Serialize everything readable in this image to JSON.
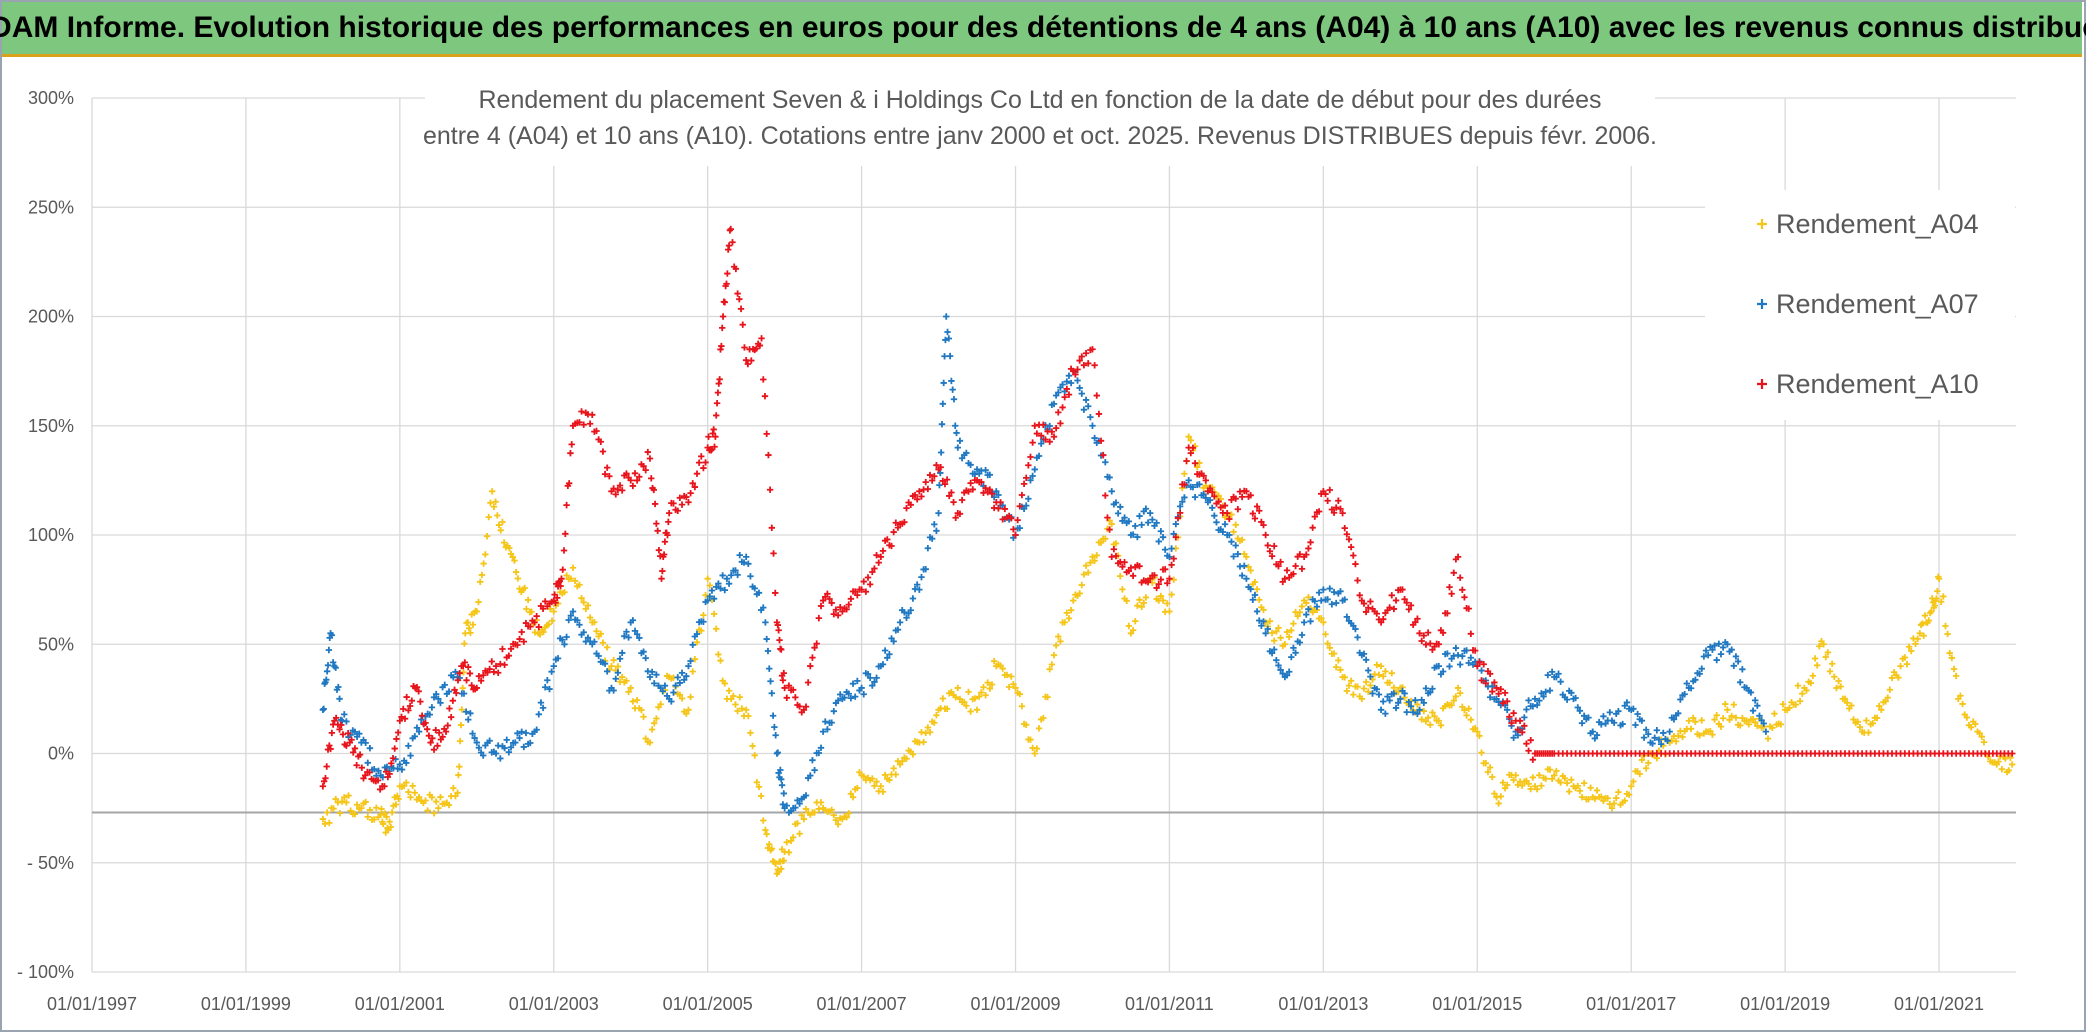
{
  "banner": {
    "title": "ADAM Informe. Evolution historique des performances en euros pour des détentions de 4 ans (A04) à 10 ans (A10) avec les revenus connus distribués"
  },
  "colors": {
    "banner_bg": "#7dc77f",
    "A04": "#f5c518",
    "A07": "#1f78c1",
    "A10": "#e8141c"
  },
  "chart_data": {
    "type": "scatter",
    "title_lines": [
      "Rendement du placement Seven & i Holdings Co Ltd en fonction de la date de début pour des durées",
      "entre 4 (A04) et 10 ans (A10). Cotations entre janv 2000 et oct. 2025. Revenus DISTRIBUES depuis févr. 2006."
    ],
    "xlabel": "",
    "ylabel": "",
    "ylim": [
      -100,
      300
    ],
    "xlim": [
      1997.0,
      2022.0
    ],
    "y_ticks": [
      {
        "value": 300,
        "label": "300%"
      },
      {
        "value": 250,
        "label": "250%"
      },
      {
        "value": 200,
        "label": "200%"
      },
      {
        "value": 150,
        "label": "150%"
      },
      {
        "value": 100,
        "label": "100%"
      },
      {
        "value": 50,
        "label": "50%"
      },
      {
        "value": 0,
        "label": "0%"
      },
      {
        "value": -50,
        "label": "- 50%"
      },
      {
        "value": -100,
        "label": "- 100%"
      }
    ],
    "x_ticks": [
      {
        "value": 1997,
        "label": "01/01/1997"
      },
      {
        "value": 1999,
        "label": "01/01/1999"
      },
      {
        "value": 2001,
        "label": "01/01/2001"
      },
      {
        "value": 2003,
        "label": "01/01/2003"
      },
      {
        "value": 2005,
        "label": "01/01/2005"
      },
      {
        "value": 2007,
        "label": "01/01/2007"
      },
      {
        "value": 2009,
        "label": "01/01/2009"
      },
      {
        "value": 2011,
        "label": "01/01/2011"
      },
      {
        "value": 2013,
        "label": "01/01/2013"
      },
      {
        "value": 2015,
        "label": "01/01/2015"
      },
      {
        "value": 2017,
        "label": "01/01/2017"
      },
      {
        "value": 2019,
        "label": "01/01/2019"
      },
      {
        "value": 2021,
        "label": "01/01/2021"
      }
    ],
    "reference_line_y": -27,
    "legend_position": "top-right",
    "series": [
      {
        "name": "Rendement_A04",
        "color": "#f5c518",
        "x": [
          2000.0,
          2000.25,
          2000.5,
          2000.75,
          2000.85,
          2001.0,
          2001.25,
          2001.5,
          2001.75,
          2001.85,
          2002.0,
          2002.2,
          2002.4,
          2002.6,
          2002.8,
          2003.0,
          2003.25,
          2003.5,
          2003.75,
          2004.0,
          2004.25,
          2004.5,
          2004.75,
          2005.0,
          2005.25,
          2005.5,
          2005.75,
          2005.9,
          2006.0,
          2006.25,
          2006.5,
          2006.75,
          2007.0,
          2007.25,
          2007.5,
          2007.75,
          2008.0,
          2008.25,
          2008.5,
          2008.75,
          2009.0,
          2009.25,
          2009.5,
          2009.75,
          2010.0,
          2010.25,
          2010.5,
          2010.75,
          2011.0,
          2011.25,
          2011.5,
          2011.75,
          2012.0,
          2012.25,
          2012.5,
          2012.75,
          2013.0,
          2013.25,
          2013.5,
          2013.75,
          2014.0,
          2014.25,
          2014.5,
          2014.75,
          2015.0,
          2015.25,
          2015.5,
          2015.75,
          2016.0,
          2016.25,
          2016.5,
          2016.75,
          2017.0,
          2017.25,
          2017.5,
          2017.75,
          2018.0,
          2018.25,
          2018.5,
          2018.75,
          2019.0,
          2019.25,
          2019.5,
          2019.75,
          2020.0,
          2020.25,
          2020.5,
          2020.75,
          2020.9,
          2021.0,
          2021.25,
          2021.5,
          2021.75,
          2021.95
        ],
        "y": [
          -30,
          -22,
          -25,
          -28,
          -35,
          -15,
          -20,
          -25,
          -18,
          55,
          65,
          120,
          95,
          75,
          55,
          65,
          85,
          60,
          40,
          30,
          5,
          35,
          20,
          80,
          25,
          20,
          -35,
          -55,
          -45,
          -30,
          -25,
          -30,
          -10,
          -15,
          -5,
          5,
          20,
          30,
          20,
          40,
          30,
          0,
          45,
          70,
          90,
          105,
          55,
          80,
          65,
          145,
          120,
          110,
          90,
          60,
          50,
          70,
          60,
          35,
          25,
          40,
          30,
          20,
          15,
          30,
          10,
          -20,
          -10,
          -15,
          -10,
          -15,
          -20,
          -25,
          -15,
          0,
          5,
          15,
          10,
          20,
          15,
          10,
          20,
          30,
          50,
          25,
          10,
          20,
          40,
          55,
          65,
          80,
          25,
          10,
          -5,
          -5
        ]
      },
      {
        "name": "Rendement_A07",
        "color": "#1f78c1",
        "x": [
          2000.0,
          2000.1,
          2000.25,
          2000.5,
          2000.75,
          2001.0,
          2001.25,
          2001.5,
          2001.75,
          2002.0,
          2002.25,
          2002.5,
          2002.75,
          2003.0,
          2003.25,
          2003.5,
          2003.75,
          2004.0,
          2004.25,
          2004.5,
          2004.75,
          2005.0,
          2005.25,
          2005.5,
          2005.75,
          2005.9,
          2006.0,
          2006.25,
          2006.5,
          2006.75,
          2007.0,
          2007.25,
          2007.5,
          2007.75,
          2008.0,
          2008.1,
          2008.25,
          2008.5,
          2008.75,
          2009.0,
          2009.25,
          2009.5,
          2009.75,
          2010.0,
          2010.25,
          2010.5,
          2010.75,
          2011.0,
          2011.25,
          2011.5,
          2011.75,
          2012.0,
          2012.25,
          2012.5,
          2012.75,
          2013.0,
          2013.25,
          2013.5,
          2013.75,
          2014.0,
          2014.25,
          2014.5,
          2014.75,
          2015.0,
          2015.25,
          2015.5,
          2015.75,
          2016.0,
          2016.25,
          2016.5,
          2016.75,
          2017.0,
          2017.25,
          2017.5,
          2017.75,
          2018.0,
          2018.25,
          2018.5,
          2018.75
        ],
        "y": [
          20,
          55,
          15,
          5,
          -10,
          -5,
          10,
          25,
          35,
          5,
          0,
          5,
          10,
          40,
          65,
          50,
          30,
          60,
          35,
          25,
          40,
          70,
          80,
          90,
          60,
          0,
          -25,
          -20,
          10,
          25,
          30,
          40,
          60,
          75,
          110,
          200,
          140,
          130,
          120,
          100,
          130,
          160,
          175,
          150,
          120,
          100,
          110,
          90,
          125,
          115,
          100,
          80,
          55,
          35,
          60,
          75,
          70,
          45,
          20,
          25,
          20,
          40,
          45,
          40,
          25,
          10,
          25,
          35,
          25,
          10,
          15,
          20,
          5,
          10,
          30,
          45,
          50,
          30,
          10
        ]
      },
      {
        "name": "Rendement_A10",
        "color": "#e8141c",
        "x": [
          2000.0,
          2000.15,
          2000.35,
          2000.55,
          2000.8,
          2001.0,
          2001.2,
          2001.4,
          2001.6,
          2001.8,
          2002.0,
          2002.25,
          2002.5,
          2002.75,
          2003.0,
          2003.1,
          2003.25,
          2003.5,
          2003.75,
          2004.0,
          2004.25,
          2004.4,
          2004.5,
          2004.75,
          2005.0,
          2005.1,
          2005.2,
          2005.3,
          2005.5,
          2005.7,
          2005.9,
          2006.0,
          2006.25,
          2006.5,
          2006.75,
          2007.0,
          2007.25,
          2007.5,
          2007.75,
          2008.0,
          2008.25,
          2008.5,
          2008.75,
          2009.0,
          2009.25,
          2009.5,
          2009.75,
          2010.0,
          2010.25,
          2010.5,
          2010.75,
          2011.0,
          2011.25,
          2011.5,
          2011.75,
          2012.0,
          2012.25,
          2012.5,
          2012.75,
          2013.0,
          2013.25,
          2013.5,
          2013.75,
          2014.0,
          2014.25,
          2014.5,
          2014.75,
          2015.0,
          2015.25,
          2015.5,
          2015.75,
          2016.0,
          2016.5,
          2017.0,
          2017.5,
          2018.0,
          2018.5,
          2019.0,
          2019.5,
          2020.0,
          2020.5,
          2021.0,
          2021.5,
          2021.95
        ],
        "y": [
          -15,
          15,
          5,
          -10,
          -15,
          15,
          30,
          5,
          10,
          40,
          30,
          40,
          50,
          60,
          70,
          80,
          150,
          155,
          120,
          125,
          135,
          80,
          110,
          115,
          140,
          145,
          200,
          240,
          180,
          190,
          60,
          30,
          20,
          70,
          65,
          75,
          90,
          105,
          120,
          130,
          110,
          125,
          115,
          100,
          150,
          145,
          175,
          185,
          90,
          85,
          80,
          80,
          140,
          120,
          110,
          120,
          100,
          80,
          90,
          120,
          110,
          70,
          60,
          75,
          55,
          50,
          90,
          40,
          30,
          15,
          0,
          0,
          0,
          0,
          0,
          0,
          0,
          0,
          0,
          0,
          0,
          0,
          0,
          0
        ]
      }
    ]
  }
}
